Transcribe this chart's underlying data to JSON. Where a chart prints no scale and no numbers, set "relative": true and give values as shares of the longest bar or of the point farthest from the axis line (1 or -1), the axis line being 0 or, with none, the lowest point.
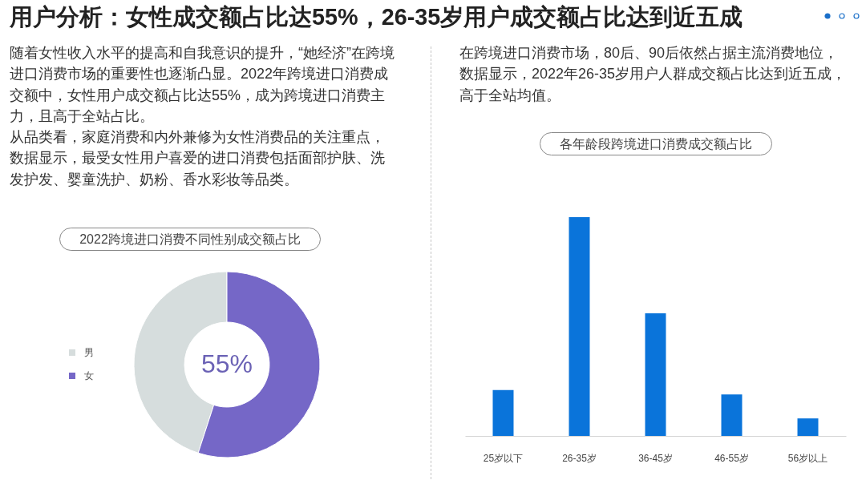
{
  "chart_data": [
    {
      "type": "other",
      "title": "用户分析：女性成交额占比达55%，26-35岁用户成交额占比达到近五成"
    },
    {
      "type": "other",
      "annotations": [
        "随着女性收入水平的提高和自我意识的提升，“她经济”在跨境进口消费市场的重要性也逐渐凸显。2022年跨境进口消费成交额中，女性用户成交额占比达55%，成为跨境进口消费主力，且高于全站占比。",
        "从品类看，家庭消费和内外兼修为女性消费品的关注重点，数据显示，最受女性用户喜爱的进口消费包括面部护肤、洗发护发、婴童洗护、奶粉、香水彩妆等品类。"
      ]
    },
    {
      "type": "donut",
      "title": "2022跨境进口消费不同性别成交额占比",
      "categories": [
        "男",
        "女"
      ],
      "values": [
        45,
        55
      ],
      "colors": [
        "#d6dddd",
        "#7567c7"
      ],
      "legend": "left",
      "annotations": [
        "55%"
      ]
    },
    {
      "type": "other",
      "annotations": [
        "在跨境进口消费市场，80后、90后依然占据主流消费地位，数据显示，2022年26-35岁用户人群成交额占比达到近五成，高于全站均值。"
      ]
    },
    {
      "type": "bar",
      "title": "各年龄段跨境进口消费成交额占比",
      "categories": [
        "25岁以下",
        "26-35岁",
        "36-45岁",
        "46-55岁",
        "56岁以上"
      ],
      "values": [
        0.21,
        1,
        0.56,
        0.19,
        0.08
      ],
      "color": "#0a74da",
      "relative": true
    }
  ]
}
